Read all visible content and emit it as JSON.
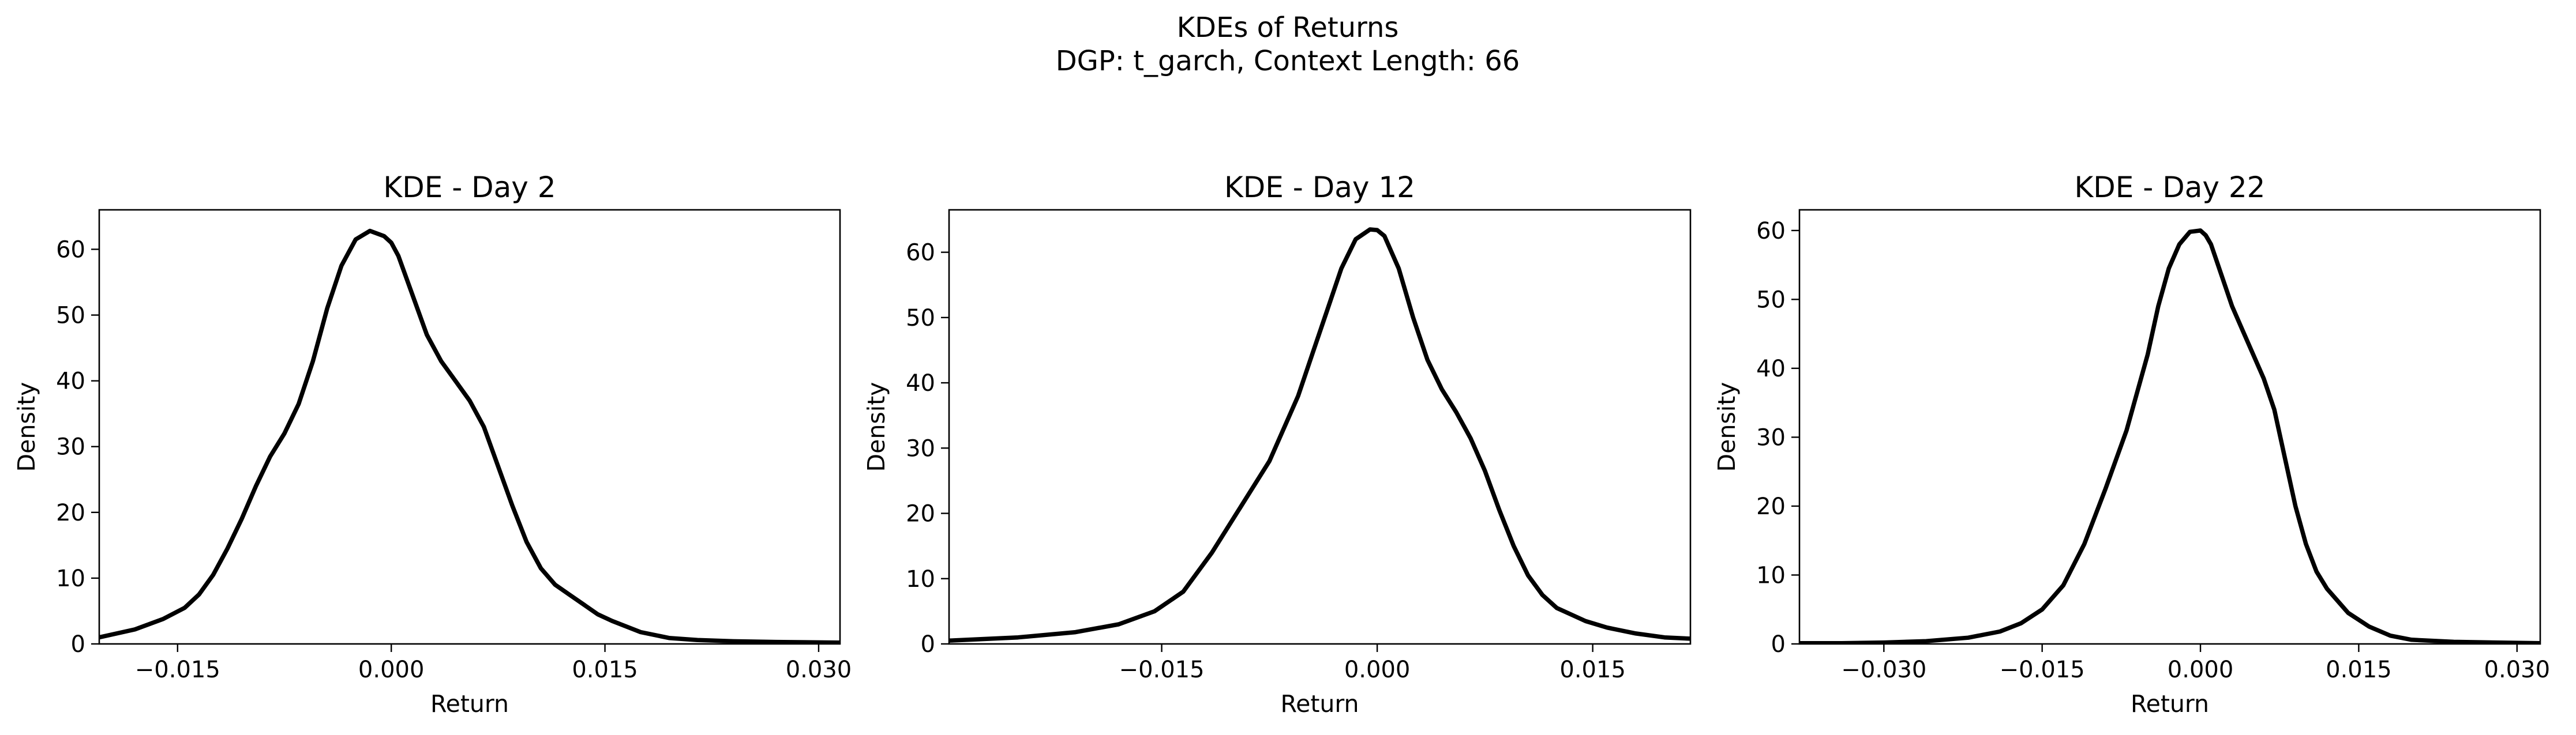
{
  "figure": {
    "title_line1": "KDEs of Returns",
    "title_line2": "DGP: t_garch, Context Length: 66"
  },
  "colors": {
    "line": "#000000",
    "background": "#ffffff"
  },
  "chart_data": [
    {
      "type": "line",
      "title": "KDE - Day 2",
      "xlabel": "Return",
      "ylabel": "Density",
      "xlim": [
        -0.0205,
        0.0315
      ],
      "ylim": [
        0,
        66
      ],
      "xticks": [
        -0.015,
        0.0,
        0.015,
        0.03
      ],
      "xtick_labels": [
        "−0.015",
        "0.000",
        "0.015",
        "0.030"
      ],
      "yticks": [
        0,
        10,
        20,
        30,
        40,
        50,
        60
      ],
      "ytick_labels": [
        "0",
        "10",
        "20",
        "30",
        "40",
        "50",
        "60"
      ],
      "grid": false,
      "x": [
        -0.0205,
        -0.018,
        -0.016,
        -0.0145,
        -0.0135,
        -0.0125,
        -0.0115,
        -0.0105,
        -0.0095,
        -0.0085,
        -0.0075,
        -0.0065,
        -0.0055,
        -0.0045,
        -0.0035,
        -0.0025,
        -0.0015,
        -0.0005,
        0.0,
        0.0005,
        0.0015,
        0.0025,
        0.0035,
        0.0045,
        0.0055,
        0.0065,
        0.0075,
        0.0085,
        0.0095,
        0.0105,
        0.0115,
        0.0125,
        0.0135,
        0.0145,
        0.0155,
        0.0175,
        0.0195,
        0.0215,
        0.024,
        0.027,
        0.0315
      ],
      "y": [
        1.0,
        2.2,
        3.8,
        5.5,
        7.5,
        10.5,
        14.5,
        19.0,
        24.0,
        28.5,
        32.0,
        36.5,
        43.0,
        51.0,
        57.5,
        61.5,
        62.8,
        62.0,
        61.0,
        59.0,
        53.0,
        47.0,
        43.0,
        40.0,
        37.0,
        33.0,
        27.0,
        21.0,
        15.5,
        11.5,
        9.0,
        7.5,
        6.0,
        4.5,
        3.5,
        1.8,
        0.9,
        0.6,
        0.4,
        0.3,
        0.2
      ]
    },
    {
      "type": "line",
      "title": "KDE - Day 12",
      "xlabel": "Return",
      "ylabel": "Density",
      "xlim": [
        -0.0298,
        0.0218
      ],
      "ylim": [
        0,
        66.5
      ],
      "xticks": [
        -0.015,
        0.0,
        0.015
      ],
      "xtick_labels": [
        "−0.015",
        "0.000",
        "0.015"
      ],
      "yticks": [
        0,
        10,
        20,
        30,
        40,
        50,
        60
      ],
      "ytick_labels": [
        "0",
        "10",
        "20",
        "30",
        "40",
        "50",
        "60"
      ],
      "grid": false,
      "x": [
        -0.0298,
        -0.025,
        -0.021,
        -0.018,
        -0.0155,
        -0.0135,
        -0.0115,
        -0.0095,
        -0.0075,
        -0.0055,
        -0.0045,
        -0.0035,
        -0.0025,
        -0.0015,
        -0.0005,
        0.0,
        0.0005,
        0.0015,
        0.0025,
        0.0035,
        0.0045,
        0.0055,
        0.0065,
        0.0075,
        0.0085,
        0.0095,
        0.0105,
        0.0115,
        0.0125,
        0.0135,
        0.0145,
        0.016,
        0.018,
        0.02,
        0.0218
      ],
      "y": [
        0.5,
        1.0,
        1.8,
        3.0,
        5.0,
        8.0,
        14.0,
        21.0,
        28.0,
        38.0,
        44.5,
        51.0,
        57.5,
        62.0,
        63.5,
        63.4,
        62.5,
        57.5,
        50.0,
        43.5,
        39.0,
        35.5,
        31.5,
        26.5,
        20.5,
        15.0,
        10.5,
        7.5,
        5.5,
        4.5,
        3.5,
        2.5,
        1.6,
        1.0,
        0.8
      ]
    },
    {
      "type": "line",
      "title": "KDE - Day 22",
      "xlabel": "Return",
      "ylabel": "Density",
      "xlim": [
        -0.038,
        0.0322
      ],
      "ylim": [
        0,
        63
      ],
      "xticks": [
        -0.03,
        -0.015,
        0.0,
        0.015,
        0.03
      ],
      "xtick_labels": [
        "−0.030",
        "−0.015",
        "0.000",
        "0.015",
        "0.030"
      ],
      "yticks": [
        0,
        10,
        20,
        30,
        40,
        50,
        60
      ],
      "ytick_labels": [
        "0",
        "10",
        "20",
        "30",
        "40",
        "50",
        "60"
      ],
      "grid": false,
      "x": [
        -0.038,
        -0.034,
        -0.03,
        -0.026,
        -0.022,
        -0.019,
        -0.017,
        -0.015,
        -0.013,
        -0.011,
        -0.009,
        -0.007,
        -0.005,
        -0.004,
        -0.003,
        -0.002,
        -0.001,
        0.0,
        0.0005,
        0.001,
        0.002,
        0.003,
        0.004,
        0.005,
        0.006,
        0.007,
        0.008,
        0.009,
        0.01,
        0.011,
        0.012,
        0.014,
        0.016,
        0.018,
        0.02,
        0.024,
        0.028,
        0.0322
      ],
      "y": [
        0.1,
        0.1,
        0.2,
        0.4,
        0.9,
        1.8,
        3.0,
        5.0,
        8.5,
        14.5,
        22.5,
        31.0,
        42.0,
        49.0,
        54.5,
        58.0,
        59.8,
        60.0,
        59.3,
        58.0,
        53.5,
        49.0,
        45.5,
        42.0,
        38.5,
        34.0,
        27.0,
        20.0,
        14.5,
        10.5,
        8.0,
        4.5,
        2.5,
        1.2,
        0.6,
        0.3,
        0.2,
        0.1
      ]
    }
  ]
}
